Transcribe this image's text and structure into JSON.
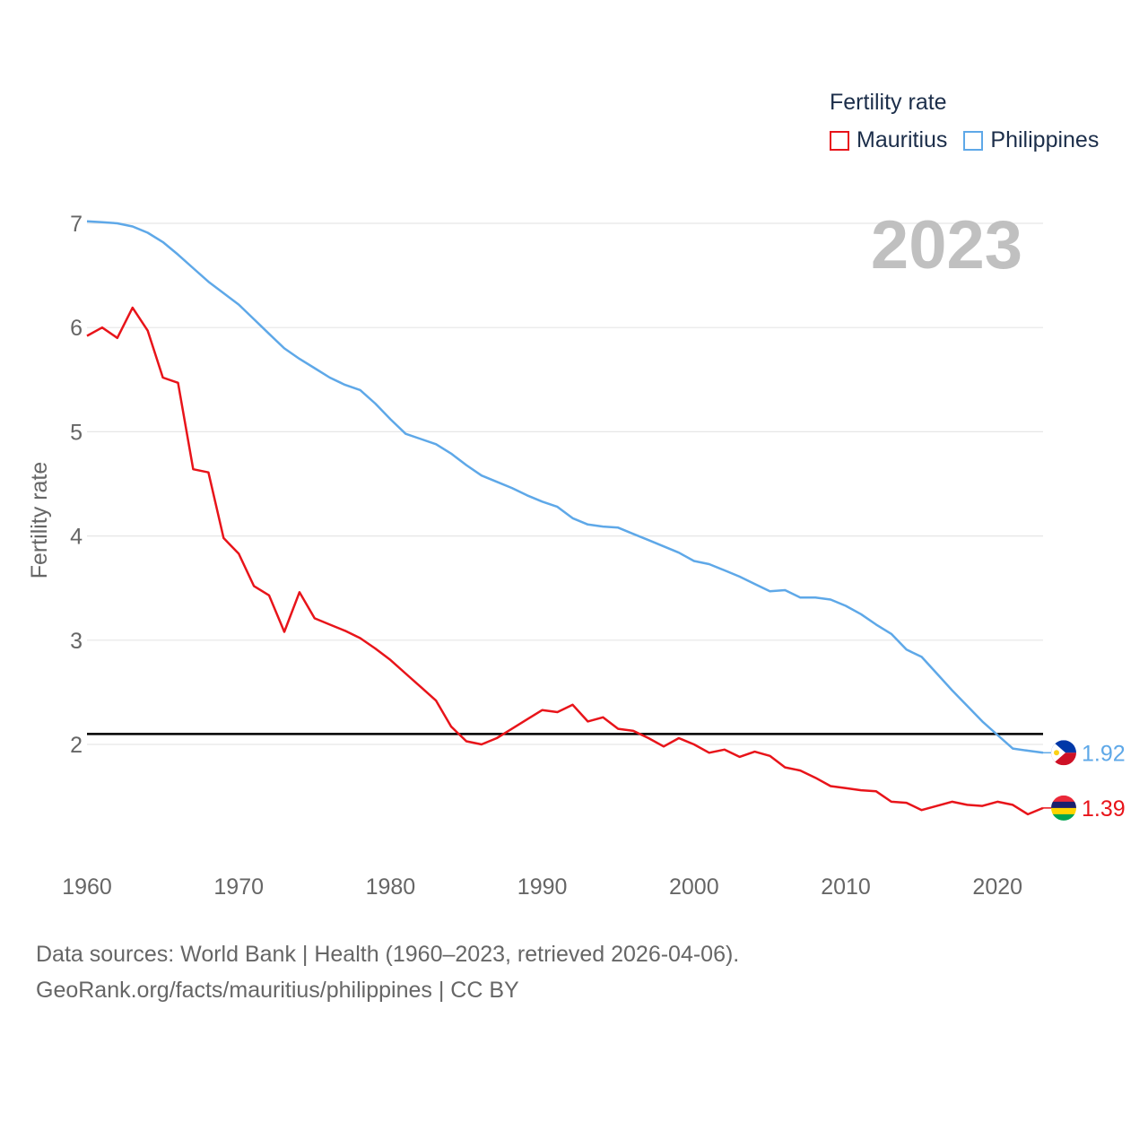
{
  "colors": {
    "mauritius": "#e8141a",
    "philippines": "#5ea8e8",
    "grid": "#e6e6e6",
    "reference": "#000000"
  },
  "legend": {
    "title": "Fertility rate",
    "items": [
      "Mauritius",
      "Philippines"
    ]
  },
  "year_label": "2023",
  "source": {
    "line1": "Data sources: World Bank | Health (1960–2023, retrieved 2026-04-06).",
    "line2": "GeoRank.org/facts/mauritius/philippines | CC BY"
  },
  "chart_data": {
    "type": "line",
    "title": "Fertility rate",
    "xlabel": "",
    "ylabel": "Fertility rate",
    "xlim": [
      1960,
      2023
    ],
    "ylim": [
      1,
      7
    ],
    "y_ticks": [
      2,
      3,
      4,
      5,
      6,
      7
    ],
    "x_ticks": [
      1960,
      1970,
      1980,
      1990,
      2000,
      2010,
      2020
    ],
    "reference_line": 2.1,
    "x": [
      1960,
      1961,
      1962,
      1963,
      1964,
      1965,
      1966,
      1967,
      1968,
      1969,
      1970,
      1971,
      1972,
      1973,
      1974,
      1975,
      1976,
      1977,
      1978,
      1979,
      1980,
      1981,
      1982,
      1983,
      1984,
      1985,
      1986,
      1987,
      1988,
      1989,
      1990,
      1991,
      1992,
      1993,
      1994,
      1995,
      1996,
      1997,
      1998,
      1999,
      2000,
      2001,
      2002,
      2003,
      2004,
      2005,
      2006,
      2007,
      2008,
      2009,
      2010,
      2011,
      2012,
      2013,
      2014,
      2015,
      2016,
      2017,
      2018,
      2019,
      2020,
      2021,
      2022,
      2023
    ],
    "series": [
      {
        "name": "Mauritius",
        "end_label": "1.39",
        "values": [
          5.92,
          6.0,
          5.9,
          6.19,
          5.97,
          5.52,
          5.47,
          4.64,
          4.61,
          3.98,
          3.83,
          3.52,
          3.43,
          3.08,
          3.46,
          3.21,
          3.15,
          3.09,
          3.02,
          2.92,
          2.81,
          2.68,
          2.55,
          2.42,
          2.17,
          2.03,
          2.0,
          2.06,
          2.15,
          2.24,
          2.33,
          2.31,
          2.38,
          2.22,
          2.26,
          2.15,
          2.13,
          2.06,
          1.98,
          2.06,
          2.0,
          1.92,
          1.95,
          1.88,
          1.93,
          1.89,
          1.78,
          1.75,
          1.68,
          1.6,
          1.58,
          1.56,
          1.55,
          1.45,
          1.44,
          1.37,
          1.41,
          1.45,
          1.42,
          1.41,
          1.45,
          1.42,
          1.33,
          1.39
        ]
      },
      {
        "name": "Philippines",
        "end_label": "1.92",
        "values": [
          7.02,
          7.01,
          7.0,
          6.97,
          6.91,
          6.82,
          6.7,
          6.57,
          6.44,
          6.33,
          6.22,
          6.08,
          5.94,
          5.8,
          5.7,
          5.61,
          5.52,
          5.45,
          5.4,
          5.27,
          5.12,
          4.98,
          4.93,
          4.88,
          4.79,
          4.68,
          4.58,
          4.52,
          4.46,
          4.39,
          4.33,
          4.28,
          4.17,
          4.11,
          4.09,
          4.08,
          4.02,
          3.96,
          3.9,
          3.84,
          3.76,
          3.73,
          3.67,
          3.61,
          3.54,
          3.47,
          3.48,
          3.41,
          3.41,
          3.39,
          3.33,
          3.25,
          3.15,
          3.06,
          2.91,
          2.84,
          2.68,
          2.52,
          2.37,
          2.22,
          2.09,
          1.96,
          1.94,
          1.92
        ]
      }
    ]
  }
}
